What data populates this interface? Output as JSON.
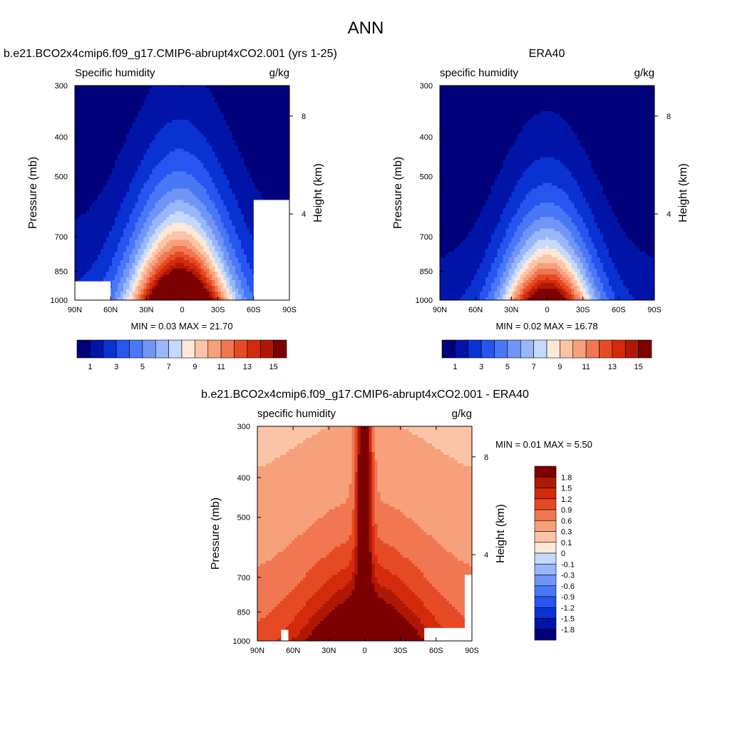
{
  "figure": {
    "title": "ANN"
  },
  "chart_data": [
    {
      "type": "heatmap",
      "title": "b.e21.BCO2x4cmip6.f09_g17.CMIP6-abrupt4xCO2.001 (yrs 1-25)",
      "variable_label": "Specific humidity",
      "units": "g/kg",
      "ylabel": "Pressure (mb)",
      "y2label": "Height (km)",
      "x_ticks": [
        "90N",
        "60N",
        "30N",
        "0",
        "30S",
        "60S",
        "90S"
      ],
      "x_range": [
        90,
        -90
      ],
      "y_ticks": [
        300,
        400,
        500,
        700,
        850,
        1000
      ],
      "y_range": [
        1000,
        300
      ],
      "y2_ticks": [
        8,
        4
      ],
      "min_label": "MIN =",
      "min": "0.03",
      "max_label": "MAX =",
      "max": "21.70",
      "levels": [
        1,
        2,
        3,
        4,
        5,
        6,
        7,
        8,
        9,
        10,
        11,
        12,
        13,
        14,
        15
      ],
      "colorbar_labels": [
        "1",
        "3",
        "5",
        "7",
        "9",
        "11",
        "13",
        "15"
      ],
      "colors": [
        "#00007a",
        "#0014a8",
        "#0a32d2",
        "#2855f0",
        "#4878f6",
        "#7095f7",
        "#98b6f9",
        "#c4d9fb",
        "#fde8d8",
        "#fbc4a6",
        "#f7a07c",
        "#f07752",
        "#e64a24",
        "#d42a0c",
        "#b01806",
        "#7d0000"
      ],
      "missing_regions": [
        {
          "lat": [
            90,
            60
          ],
          "p": [
            1000,
            900
          ]
        },
        {
          "lat": [
            -60,
            -90
          ],
          "p": [
            1000,
            570
          ]
        }
      ]
    },
    {
      "type": "heatmap",
      "title": "ERA40",
      "variable_label": "specific humidity",
      "units": "g/kg",
      "ylabel": "Pressure (mb)",
      "y2label": "Height (km)",
      "x_ticks": [
        "90N",
        "60N",
        "30N",
        "0",
        "30S",
        "60S",
        "90S"
      ],
      "x_range": [
        90,
        -90
      ],
      "y_ticks": [
        300,
        400,
        500,
        700,
        850,
        1000
      ],
      "y_range": [
        1000,
        300
      ],
      "y2_ticks": [
        8,
        4
      ],
      "min_label": "MIN =",
      "min": "0.02",
      "max_label": "MAX =",
      "max": "16.78",
      "levels": [
        1,
        2,
        3,
        4,
        5,
        6,
        7,
        8,
        9,
        10,
        11,
        12,
        13,
        14,
        15
      ],
      "colorbar_labels": [
        "1",
        "3",
        "5",
        "7",
        "9",
        "11",
        "13",
        "15"
      ],
      "colors": [
        "#00007a",
        "#0014a8",
        "#0a32d2",
        "#2855f0",
        "#4878f6",
        "#7095f7",
        "#98b6f9",
        "#c4d9fb",
        "#fde8d8",
        "#fbc4a6",
        "#f7a07c",
        "#f07752",
        "#e64a24",
        "#d42a0c",
        "#b01806",
        "#7d0000"
      ],
      "missing_regions": []
    },
    {
      "type": "heatmap",
      "title": "b.e21.BCO2x4cmip6.f09_g17.CMIP6-abrupt4xCO2.001 - ERA40",
      "variable_label": "specific humidity",
      "units": "g/kg",
      "ylabel": "Pressure (mb)",
      "y2label": "Height (km)",
      "x_ticks": [
        "90N",
        "60N",
        "30N",
        "0",
        "30S",
        "60S",
        "90S"
      ],
      "x_range": [
        90,
        -90
      ],
      "y_ticks": [
        300,
        400,
        500,
        700,
        850,
        1000
      ],
      "y_range": [
        1000,
        300
      ],
      "y2_ticks": [
        8,
        4
      ],
      "min_label": "MIN =",
      "min": "0.01",
      "max_label": "MAX =",
      "max": "5.50",
      "levels": [
        -1.8,
        -1.5,
        -1.2,
        -0.9,
        -0.6,
        -0.3,
        -0.1,
        0,
        0.1,
        0.3,
        0.6,
        0.9,
        1.2,
        1.5,
        1.8
      ],
      "colorbar_labels": [
        "1.8",
        "1.5",
        "1.2",
        "0.9",
        "0.6",
        "0.3",
        "0.1",
        "0",
        "-0.1",
        "-0.3",
        "-0.6",
        "-0.9",
        "-1.2",
        "-1.5",
        "-1.8"
      ],
      "colors": [
        "#00007a",
        "#0014a8",
        "#0a32d2",
        "#2855f0",
        "#4878f6",
        "#7095f7",
        "#98b6f9",
        "#c4d9fb",
        "#fde8d8",
        "#fbc4a6",
        "#f7a07c",
        "#f07752",
        "#e64a24",
        "#d42a0c",
        "#b01806",
        "#7d0000"
      ],
      "missing_regions": [
        {
          "lat": [
            70,
            64
          ],
          "p": [
            1000,
            940
          ]
        },
        {
          "lat": [
            -50,
            -90
          ],
          "p": [
            1000,
            930
          ]
        },
        {
          "lat": [
            -84,
            -90
          ],
          "p": [
            930,
            690
          ]
        }
      ]
    }
  ]
}
